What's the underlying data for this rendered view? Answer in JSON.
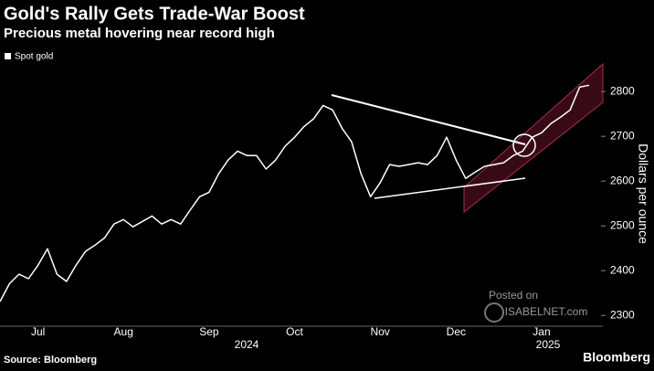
{
  "chart_data": {
    "type": "line",
    "title": "Gold's Rally Gets Trade-War Boost",
    "subtitle": "Precious metal hovering near record high",
    "y_axis_label": "Dollars per ounce",
    "source": "Source: Bloomberg",
    "brand": "Bloomberg",
    "watermark": [
      "Posted on",
      "ISABELNET.com"
    ],
    "year_labels": [
      "2024",
      "2025"
    ],
    "categories": [
      null,
      null,
      null,
      null,
      "Jul",
      null,
      null,
      null,
      null,
      null,
      null,
      null,
      null,
      "Aug",
      null,
      null,
      null,
      null,
      null,
      null,
      null,
      null,
      "Sep",
      null,
      null,
      null,
      null,
      null,
      null,
      null,
      null,
      "Oct",
      null,
      null,
      null,
      null,
      null,
      null,
      null,
      null,
      "Nov",
      null,
      null,
      null,
      null,
      null,
      null,
      null,
      "Dec",
      null,
      null,
      null,
      null,
      null,
      null,
      null,
      null,
      "Jan",
      null,
      null,
      null,
      null,
      null
    ],
    "series": [
      {
        "name": "Spot gold",
        "color": "#ffffff",
        "values": [
          2331,
          2371,
          2392,
          2382,
          2412,
          2449,
          2392,
          2376,
          2412,
          2443,
          2457,
          2473,
          2504,
          2514,
          2498,
          2510,
          2522,
          2504,
          2514,
          2504,
          2535,
          2565,
          2575,
          2616,
          2647,
          2667,
          2657,
          2657,
          2627,
          2647,
          2678,
          2698,
          2722,
          2739,
          2769,
          2759,
          2718,
          2688,
          2616,
          2565,
          2596,
          2637,
          2633,
          2637,
          2641,
          2637,
          2657,
          2698,
          2647,
          2606,
          2620,
          2633,
          2637,
          2641,
          2657,
          2667,
          2698,
          2708,
          2729,
          2743,
          2759,
          2810,
          2814
        ]
      }
    ],
    "ylim": [
      2280,
      2882
    ],
    "yticks": [
      2300,
      2400,
      2500,
      2600,
      2700,
      2800
    ],
    "grid": false
  }
}
